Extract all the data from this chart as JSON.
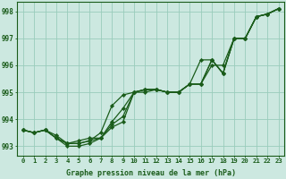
{
  "xlabel": "Graphe pression niveau de la mer (hPa)",
  "bg_color": "#cce8e0",
  "grid_color": "#99ccbb",
  "line_color": "#1a5c1a",
  "x": [
    0,
    1,
    2,
    3,
    4,
    5,
    6,
    7,
    8,
    9,
    10,
    11,
    12,
    13,
    14,
    15,
    16,
    17,
    18,
    19,
    20,
    21,
    22,
    23
  ],
  "line1": [
    993.6,
    993.5,
    993.6,
    993.3,
    993.1,
    993.1,
    993.2,
    993.3,
    993.8,
    994.1,
    995.0,
    995.1,
    995.1,
    995.0,
    995.0,
    995.3,
    995.3,
    996.2,
    995.7,
    997.0,
    997.0,
    997.8,
    997.9,
    998.1
  ],
  "line2": [
    993.6,
    993.5,
    993.6,
    993.3,
    993.1,
    993.1,
    993.2,
    993.5,
    994.5,
    994.9,
    995.0,
    995.1,
    995.1,
    995.0,
    995.0,
    995.3,
    996.2,
    996.2,
    995.7,
    997.0,
    997.0,
    997.8,
    997.9,
    998.1
  ],
  "line3": [
    993.6,
    993.5,
    993.6,
    993.4,
    993.1,
    993.2,
    993.3,
    993.3,
    993.9,
    994.4,
    995.0,
    995.1,
    995.1,
    995.0,
    995.0,
    995.3,
    995.3,
    996.0,
    996.0,
    997.0,
    997.0,
    997.8,
    997.9,
    998.1
  ],
  "line4": [
    993.6,
    993.5,
    993.6,
    993.3,
    993.0,
    993.0,
    993.1,
    993.3,
    993.7,
    993.9,
    995.0,
    995.0,
    995.1,
    995.0,
    995.0,
    995.3,
    995.3,
    996.2,
    995.7,
    997.0,
    997.0,
    997.8,
    997.9,
    998.1
  ],
  "ylim": [
    992.65,
    998.35
  ],
  "yticks": [
    993,
    994,
    995,
    996,
    997,
    998
  ],
  "xticks": [
    0,
    1,
    2,
    3,
    4,
    5,
    6,
    7,
    8,
    9,
    10,
    11,
    12,
    13,
    14,
    15,
    16,
    17,
    18,
    19,
    20,
    21,
    22,
    23
  ],
  "xlim": [
    -0.5,
    23.5
  ],
  "xlabel_fontsize": 6.0,
  "tick_fontsize": 5.2,
  "ytick_fontsize": 5.5,
  "lw": 0.9,
  "ms": 2.2
}
